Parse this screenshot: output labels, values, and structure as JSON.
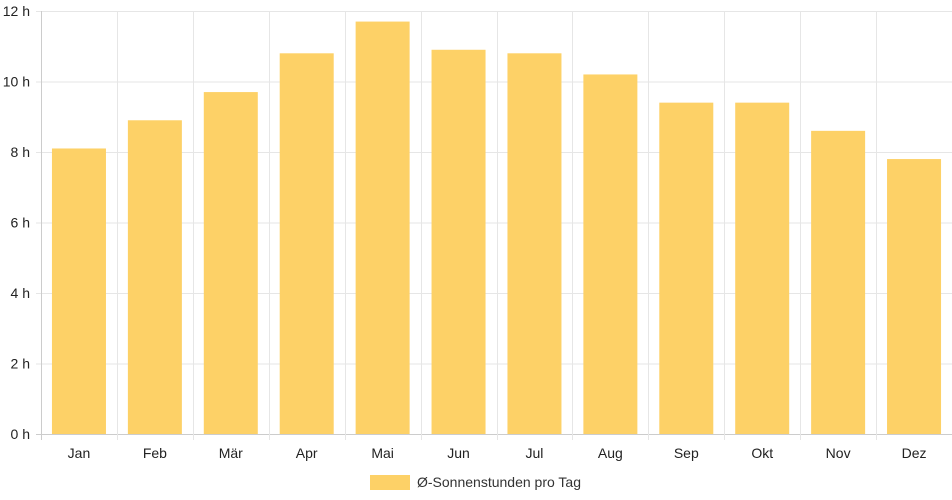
{
  "chart_data": {
    "type": "bar",
    "categories": [
      "Jan",
      "Feb",
      "Mär",
      "Apr",
      "Mai",
      "Jun",
      "Jul",
      "Aug",
      "Sep",
      "Okt",
      "Nov",
      "Dez"
    ],
    "series": [
      {
        "name": "Ø-Sonnenstunden pro Tag",
        "values": [
          8.1,
          8.9,
          9.7,
          10.8,
          11.7,
          10.9,
          10.8,
          10.2,
          9.4,
          9.4,
          8.6,
          7.8
        ],
        "color": "#FDD167"
      }
    ],
    "ylim": [
      0,
      12
    ],
    "yticks": [
      0,
      2,
      4,
      6,
      8,
      10,
      12
    ],
    "ytick_suffix": " h",
    "grid": true,
    "legend_position": "bottom"
  }
}
